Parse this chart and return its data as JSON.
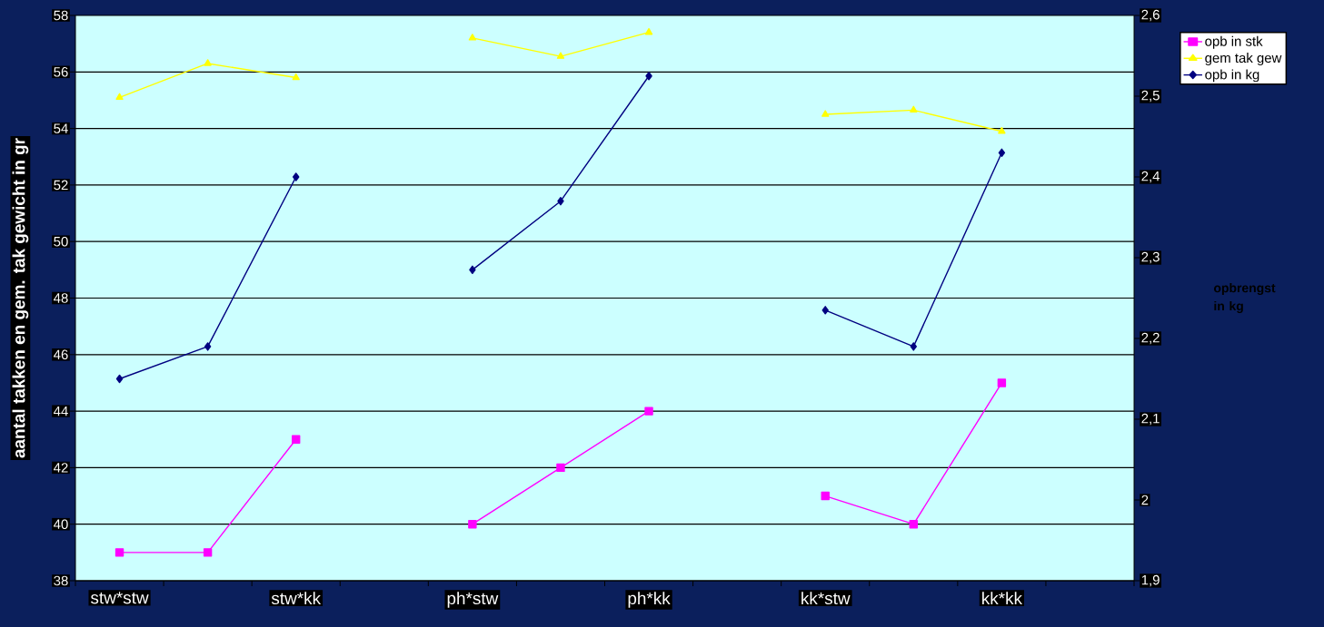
{
  "chart_data": {
    "type": "line",
    "categories": [
      "stw*stw",
      null,
      "stw*kk",
      null,
      "ph*stw",
      null,
      "ph*kk",
      null,
      "kk*stw",
      null,
      "kk*kk",
      null
    ],
    "series": [
      {
        "name": "opb in stk",
        "color": "#ff00ff",
        "marker": "square",
        "values": [
          39,
          39,
          43,
          null,
          40,
          42,
          44,
          null,
          41,
          40,
          45,
          null
        ]
      },
      {
        "name": "gem tak gew",
        "color": "#ffff00",
        "marker": "triangle",
        "values": [
          55.1,
          56.3,
          55.8,
          null,
          57.2,
          56.55,
          57.4,
          null,
          54.5,
          54.65,
          53.9,
          null
        ]
      },
      {
        "name": "opb in kg",
        "color": "#000080",
        "marker": "diamond",
        "axis": "y2",
        "values": [
          2.15,
          2.19,
          2.4,
          null,
          2.285,
          2.37,
          2.525,
          null,
          2.235,
          2.19,
          2.43,
          null
        ]
      }
    ],
    "ylabel": "aantal takken en gem. tak gewicht in gr",
    "y2label": "opbrengst in kg",
    "ylim": [
      38,
      58
    ],
    "yticks": [
      38,
      40,
      42,
      44,
      46,
      48,
      50,
      52,
      54,
      56,
      58
    ],
    "y2lim": [
      1.9,
      2.6
    ],
    "y2ticks": [
      {
        "value": 1.9,
        "label": "1,9"
      },
      {
        "value": 2.0,
        "label": "2"
      },
      {
        "value": 2.1,
        "label": "2,1"
      },
      {
        "value": 2.2,
        "label": "2,2"
      },
      {
        "value": 2.3,
        "label": "2,3"
      },
      {
        "value": 2.4,
        "label": "2,4"
      },
      {
        "value": 2.5,
        "label": "2,5"
      },
      {
        "value": 2.6,
        "label": "2,6"
      }
    ],
    "grid": "y",
    "legend": "top right"
  }
}
